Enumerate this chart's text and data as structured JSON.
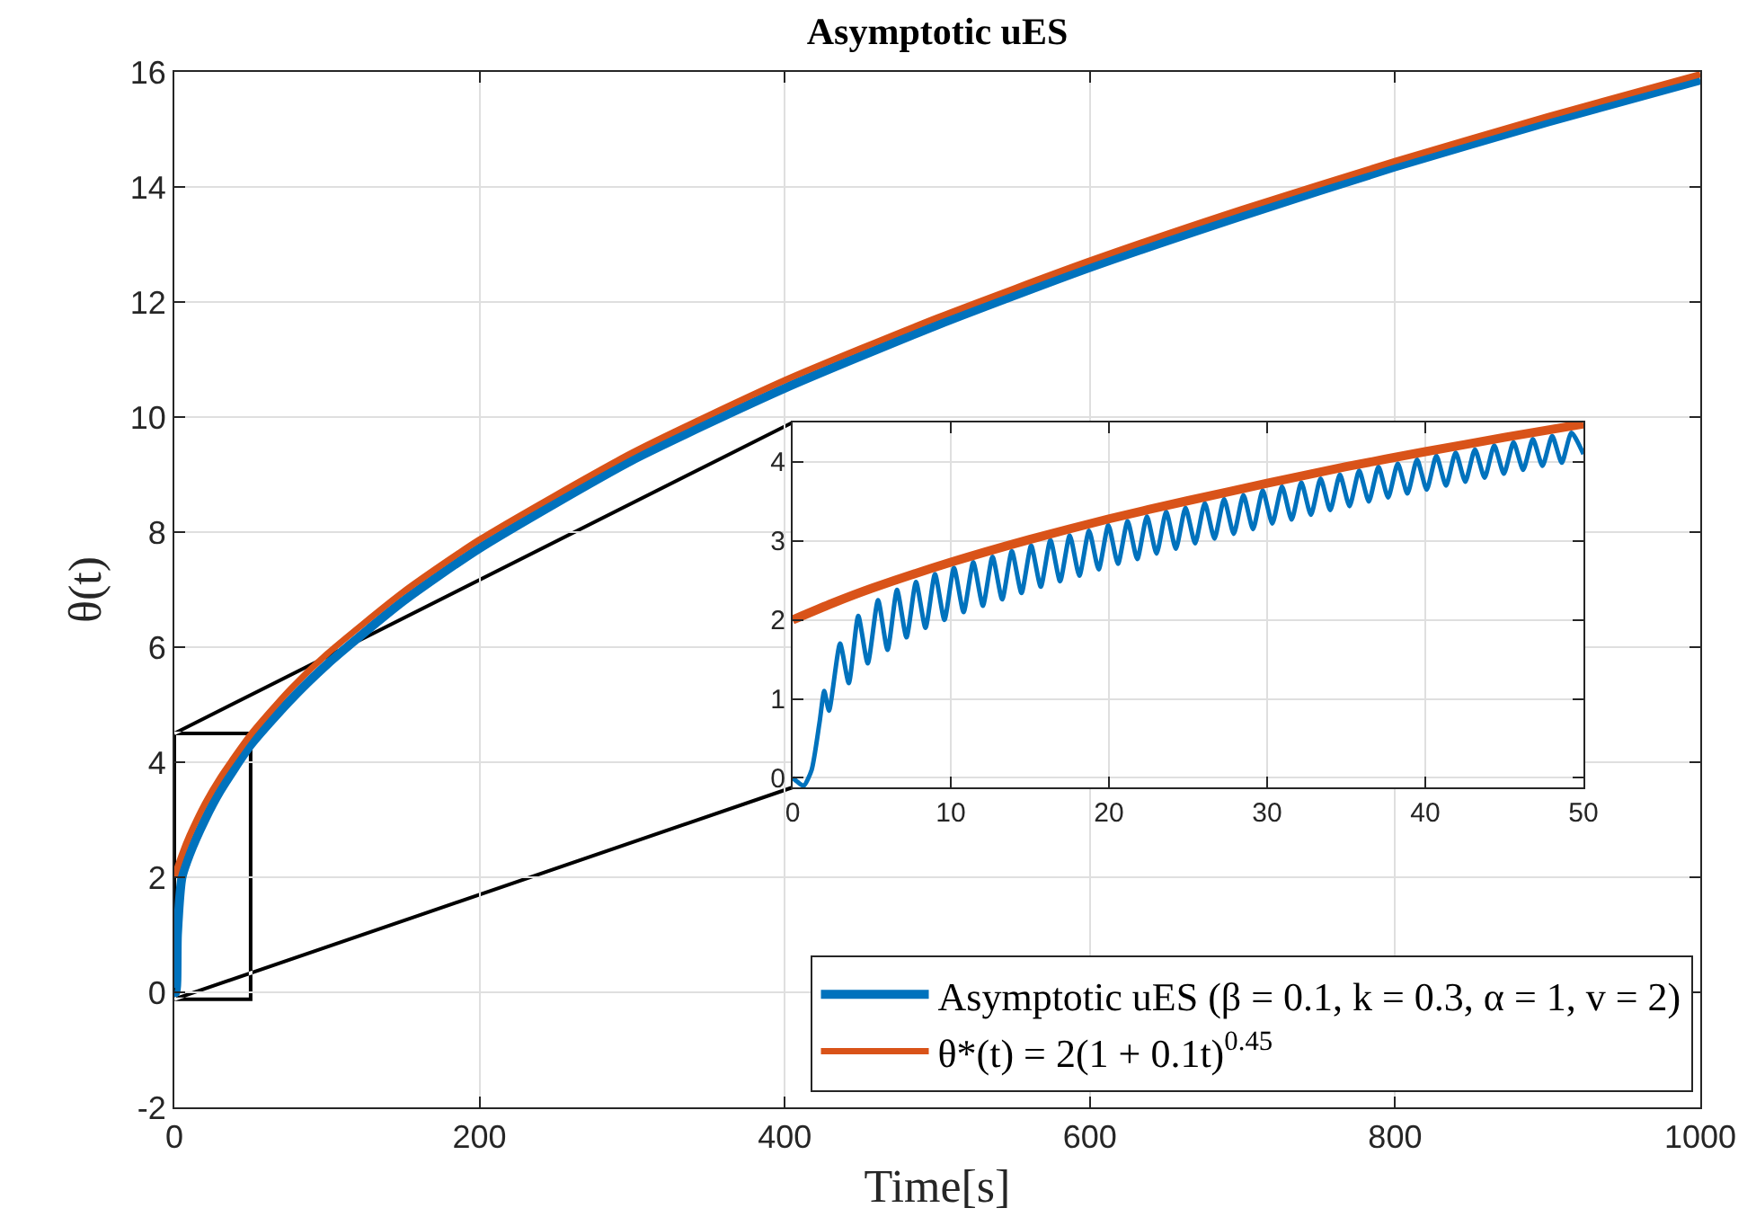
{
  "chart_data": [
    {
      "type": "line",
      "title": "Asymptotic uES",
      "xlabel": "Time[s]",
      "ylabel": "θ(t)",
      "xlim": [
        0,
        1000
      ],
      "xticks": [
        0,
        200,
        400,
        600,
        800,
        1000
      ],
      "ylim": [
        -2,
        16
      ],
      "yticks": [
        -2,
        0,
        2,
        4,
        6,
        8,
        10,
        12,
        14,
        16
      ],
      "grid": true,
      "legend": "bottom right",
      "line_style": "solid",
      "series": [
        {
          "name": "Asymptotic uES (β = 0.1, k = 0.3, α = 1, v = 2)",
          "color": "#0072bd",
          "x": [
            0,
            1,
            2,
            5,
            10,
            20,
            30,
            50,
            75,
            100,
            150,
            200,
            300,
            400,
            500,
            600,
            700,
            800,
            900,
            1000
          ],
          "values": [
            0,
            0,
            1.0,
            2.0,
            2.4,
            3.0,
            3.5,
            4.3,
            5.05,
            5.7,
            6.8,
            7.72,
            9.25,
            10.5,
            11.6,
            12.6,
            13.5,
            14.35,
            15.13,
            15.86
          ]
        },
        {
          "name": "θ*(t) = 2(1 + 0.1t)$^{0.45}$",
          "color": "#d95319",
          "x": [
            0,
            2,
            5,
            10,
            20,
            30,
            50,
            75,
            100,
            150,
            200,
            300,
            400,
            500,
            600,
            700,
            800,
            900,
            1000
          ],
          "values": [
            2,
            2.17,
            2.4,
            2.73,
            3.28,
            3.73,
            4.48,
            5.24,
            5.88,
            6.96,
            7.87,
            9.38,
            10.64,
            11.73,
            12.72,
            13.62,
            14.45,
            15.23,
            15.96
          ]
        }
      ]
    },
    {
      "type": "line",
      "xlim": [
        0,
        50
      ],
      "xticks": [
        0,
        10,
        20,
        30,
        40,
        50
      ],
      "ylim": [
        -0.12,
        4.5
      ],
      "yticks": [
        0,
        1,
        2,
        3,
        4
      ],
      "grid": true,
      "line_style": "solid",
      "series": [
        {
          "color": "#0072bd",
          "x": [
            0,
            0.3,
            0.7,
            1.2,
            1.7,
            2.0,
            2.3,
            3.0,
            3.55,
            4.15,
            4.75,
            5.4,
            6.0,
            6.6,
            7.2,
            7.8,
            8.4,
            9.0,
            9.6,
            10.2,
            10.81,
            11.42,
            12.03,
            12.64,
            13.25,
            13.86,
            14.47,
            15.08,
            15.69,
            16.3,
            16.91,
            17.52,
            18.13,
            18.74,
            19.35,
            19.96,
            20.57,
            21.18,
            21.79,
            22.4,
            23.01,
            23.62,
            24.23,
            24.84,
            25.45,
            26.06,
            26.67,
            27.28,
            27.89,
            28.5,
            29.11,
            29.72,
            30.33,
            30.94,
            31.55,
            32.16,
            32.77,
            33.38,
            33.99,
            34.6,
            35.21,
            35.82,
            36.43,
            37.04,
            37.65,
            38.26,
            38.87,
            39.48,
            40.09,
            40.7,
            41.31,
            41.92,
            42.53,
            43.14,
            43.75,
            44.36,
            44.97,
            45.58,
            46.19,
            46.8,
            47.41,
            48.02,
            48.63,
            49.24,
            50
          ],
          "values": [
            0,
            -0.05,
            -0.1,
            0.1,
            0.7,
            1.1,
            0.85,
            1.7,
            1.2,
            2.05,
            1.45,
            2.25,
            1.62,
            2.38,
            1.78,
            2.48,
            1.9,
            2.58,
            2.0,
            2.66,
            2.1,
            2.73,
            2.18,
            2.8,
            2.26,
            2.87,
            2.34,
            2.94,
            2.42,
            3.01,
            2.49,
            3.07,
            2.56,
            3.13,
            2.64,
            3.2,
            2.71,
            3.25,
            2.77,
            3.31,
            2.84,
            3.37,
            2.9,
            3.42,
            2.97,
            3.48,
            3.03,
            3.53,
            3.09,
            3.58,
            3.15,
            3.64,
            3.22,
            3.69,
            3.27,
            3.74,
            3.33,
            3.79,
            3.39,
            3.84,
            3.44,
            3.89,
            3.5,
            3.94,
            3.55,
            3.98,
            3.6,
            4.03,
            3.65,
            4.08,
            3.7,
            4.12,
            3.75,
            4.16,
            3.8,
            4.21,
            3.85,
            4.25,
            3.9,
            4.29,
            3.95,
            4.33,
            3.99,
            4.37,
            4.1
          ]
        },
        {
          "color": "#d95319",
          "x": [
            0,
            2.5,
            5,
            10,
            15,
            20,
            25,
            30,
            35,
            40,
            45,
            50
          ],
          "values": [
            2,
            2.21,
            2.4,
            2.73,
            3.02,
            3.28,
            3.51,
            3.73,
            3.94,
            4.13,
            4.31,
            4.48
          ]
        }
      ]
    }
  ]
}
